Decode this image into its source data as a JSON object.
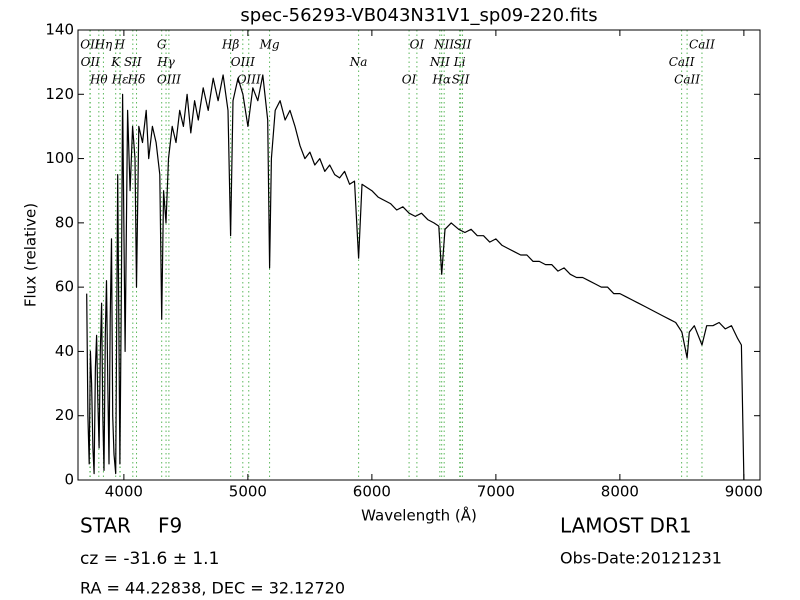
{
  "chart_data": {
    "type": "line",
    "title": "spec-56293-VB043N31V1_sp09-220.fits",
    "x_label": "Wavelength (Å)",
    "y_label": "Flux (relative)",
    "color": "#000000",
    "line_color": "#5cb85c",
    "xlim": [
      3630,
      9130
    ],
    "xticks": [
      4000,
      5000,
      6000,
      7000,
      8000,
      9000
    ],
    "ylim": [
      0,
      140
    ],
    "yticks": [
      0,
      20,
      40,
      60,
      80,
      100,
      120,
      140
    ],
    "x": [
      3700,
      3710,
      3720,
      3730,
      3740,
      3750,
      3760,
      3770,
      3780,
      3790,
      3800,
      3810,
      3820,
      3830,
      3840,
      3850,
      3860,
      3870,
      3880,
      3890,
      3900,
      3910,
      3920,
      3934,
      3950,
      3968,
      3980,
      3990,
      4010,
      4030,
      4050,
      4070,
      4090,
      4102,
      4120,
      4150,
      4180,
      4200,
      4230,
      4260,
      4290,
      4305,
      4320,
      4340,
      4360,
      4390,
      4420,
      4450,
      4480,
      4510,
      4540,
      4570,
      4600,
      4640,
      4680,
      4720,
      4760,
      4800,
      4840,
      4861,
      4880,
      4920,
      4960,
      5000,
      5040,
      5080,
      5120,
      5160,
      5175,
      5190,
      5220,
      5260,
      5300,
      5340,
      5380,
      5420,
      5460,
      5500,
      5540,
      5580,
      5620,
      5660,
      5700,
      5740,
      5780,
      5820,
      5860,
      5893,
      5920,
      5960,
      6000,
      6050,
      6100,
      6150,
      6200,
      6250,
      6300,
      6350,
      6400,
      6450,
      6500,
      6540,
      6563,
      6590,
      6640,
      6700,
      6750,
      6800,
      6850,
      6900,
      6950,
      7000,
      7050,
      7100,
      7150,
      7200,
      7250,
      7300,
      7350,
      7400,
      7450,
      7500,
      7550,
      7600,
      7650,
      7700,
      7750,
      7800,
      7850,
      7900,
      7950,
      8000,
      8050,
      8100,
      8150,
      8200,
      8250,
      8300,
      8350,
      8400,
      8450,
      8500,
      8542,
      8560,
      8600,
      8662,
      8700,
      8750,
      8800,
      8850,
      8900,
      8950,
      8980,
      8995,
      9000
    ],
    "values": [
      58,
      20,
      5,
      40,
      30,
      10,
      2,
      35,
      45,
      25,
      10,
      40,
      55,
      20,
      3,
      45,
      62,
      30,
      5,
      50,
      75,
      20,
      8,
      2,
      95,
      5,
      60,
      120,
      40,
      115,
      90,
      110,
      100,
      60,
      110,
      105,
      115,
      100,
      110,
      105,
      95,
      50,
      90,
      80,
      100,
      110,
      105,
      115,
      110,
      120,
      108,
      118,
      112,
      122,
      115,
      125,
      118,
      126,
      115,
      76,
      118,
      125,
      120,
      110,
      122,
      118,
      126,
      112,
      66,
      100,
      115,
      118,
      112,
      115,
      110,
      104,
      100,
      102,
      98,
      100,
      96,
      98,
      95,
      94,
      96,
      92,
      93,
      69,
      92,
      91,
      90,
      88,
      87,
      86,
      84,
      85,
      83,
      82,
      83,
      81,
      80,
      79,
      64,
      78,
      80,
      78,
      77,
      78,
      76,
      76,
      74,
      75,
      73,
      72,
      71,
      70,
      70,
      68,
      68,
      67,
      67,
      65,
      66,
      64,
      63,
      63,
      62,
      61,
      60,
      60,
      58,
      58,
      57,
      56,
      55,
      54,
      53,
      52,
      51,
      50,
      49,
      46,
      38,
      46,
      48,
      42,
      48,
      48,
      49,
      47,
      48,
      44,
      42,
      10,
      0
    ],
    "lines": [
      {
        "label": "OII",
        "wavelength": 3726
      },
      {
        "label": "OII",
        "wavelength": 3729
      },
      {
        "label": "Hθ",
        "wavelength": 3798
      },
      {
        "label": "Hη",
        "wavelength": 3835
      },
      {
        "label": "K",
        "wavelength": 3934
      },
      {
        "label": "Hε",
        "wavelength": 3970
      },
      {
        "label": "H",
        "wavelength": 3968
      },
      {
        "label": "SII",
        "wavelength": 4072
      },
      {
        "label": "Hδ",
        "wavelength": 4102
      },
      {
        "label": "G",
        "wavelength": 4305
      },
      {
        "label": "Hγ",
        "wavelength": 4340
      },
      {
        "label": "OIII",
        "wavelength": 4363
      },
      {
        "label": "Hβ",
        "wavelength": 4861
      },
      {
        "label": "OIII",
        "wavelength": 4959
      },
      {
        "label": "OIII",
        "wavelength": 5007
      },
      {
        "label": "Mg",
        "wavelength": 5175
      },
      {
        "label": "Na",
        "wavelength": 5893
      },
      {
        "label": "OI",
        "wavelength": 6300
      },
      {
        "label": "OI",
        "wavelength": 6363
      },
      {
        "label": "NII",
        "wavelength": 6548
      },
      {
        "label": "Hα",
        "wavelength": 6563
      },
      {
        "label": "NII",
        "wavelength": 6583
      },
      {
        "label": "Li",
        "wavelength": 6708
      },
      {
        "label": "SII",
        "wavelength": 6716
      },
      {
        "label": "SII",
        "wavelength": 6731
      },
      {
        "label": "CaII",
        "wavelength": 8498
      },
      {
        "label": "CaII",
        "wavelength": 8542
      },
      {
        "label": "CaII",
        "wavelength": 8662
      }
    ],
    "object_type": "STAR",
    "subclass": "F9",
    "redshift": "cz = -31.6 ± 1.1",
    "coordinates": "RA = 44.22838, DEC = 32.12720",
    "survey": "LAMOST DR1",
    "obs_date": "Obs-Date:20121231"
  }
}
